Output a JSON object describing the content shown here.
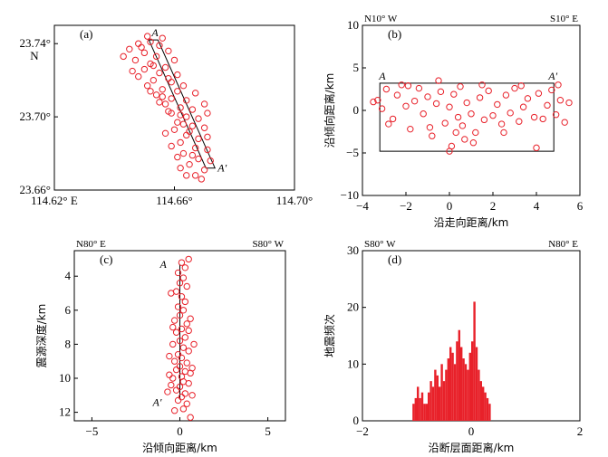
{
  "chart_data": [
    {
      "id": "a",
      "type": "scatter",
      "panel_label": "(a)",
      "xlim": [
        114.62,
        114.7
      ],
      "ylim": [
        23.66,
        23.75
      ],
      "x_ticks": [
        114.62,
        114.66,
        114.7
      ],
      "x_tick_labels": [
        "114.62° E",
        "114.66°",
        "114.70°"
      ],
      "y_ticks": [
        23.66,
        23.7,
        23.74
      ],
      "y_tick_labels": [
        "23.66°",
        "23.70°",
        "23.74°"
      ],
      "y_unit": "N",
      "profile": {
        "start_label": "A",
        "end_label": "A′",
        "start": [
          114.653,
          23.742
        ],
        "end": [
          114.672,
          23.672
        ]
      },
      "points": [
        [
          114.652,
          23.741
        ],
        [
          114.649,
          23.738
        ],
        [
          114.655,
          23.739
        ],
        [
          114.65,
          23.735
        ],
        [
          114.654,
          23.733
        ],
        [
          114.647,
          23.731
        ],
        [
          114.652,
          23.729
        ],
        [
          114.657,
          23.727
        ],
        [
          114.65,
          23.726
        ],
        [
          114.655,
          23.724
        ],
        [
          114.648,
          23.722
        ],
        [
          114.653,
          23.72
        ],
        [
          114.659,
          23.719
        ],
        [
          114.651,
          23.717
        ],
        [
          114.656,
          23.715
        ],
        [
          114.661,
          23.714
        ],
        [
          114.654,
          23.712
        ],
        [
          114.659,
          23.71
        ],
        [
          114.664,
          23.709
        ],
        [
          114.657,
          23.707
        ],
        [
          114.662,
          23.705
        ],
        [
          114.666,
          23.704
        ],
        [
          114.659,
          23.702
        ],
        [
          114.664,
          23.7
        ],
        [
          114.668,
          23.699
        ],
        [
          114.661,
          23.697
        ],
        [
          114.666,
          23.695
        ],
        [
          114.66,
          23.693
        ],
        [
          114.664,
          23.69
        ],
        [
          114.668,
          23.688
        ],
        [
          114.662,
          23.686
        ],
        [
          114.667,
          23.683
        ],
        [
          114.663,
          23.68
        ],
        [
          114.668,
          23.677
        ],
        [
          114.665,
          23.674
        ],
        [
          114.67,
          23.671
        ],
        [
          114.667,
          23.668
        ],
        [
          114.645,
          23.737
        ],
        [
          114.643,
          23.733
        ],
        [
          114.658,
          23.736
        ],
        [
          114.66,
          23.731
        ],
        [
          114.646,
          23.725
        ],
        [
          114.661,
          23.723
        ],
        [
          114.663,
          23.717
        ],
        [
          114.652,
          23.714
        ],
        [
          114.667,
          23.713
        ],
        [
          114.655,
          23.708
        ],
        [
          114.67,
          23.707
        ],
        [
          114.658,
          23.703
        ],
        [
          114.671,
          23.702
        ],
        [
          114.663,
          23.696
        ],
        [
          114.67,
          23.694
        ],
        [
          114.657,
          23.691
        ],
        [
          114.671,
          23.689
        ],
        [
          114.659,
          23.684
        ],
        [
          114.671,
          23.682
        ],
        [
          114.661,
          23.678
        ],
        [
          114.672,
          23.676
        ],
        [
          114.662,
          23.672
        ],
        [
          114.669,
          23.666
        ],
        [
          114.651,
          23.744
        ],
        [
          114.656,
          23.743
        ],
        [
          114.648,
          23.74
        ],
        [
          114.653,
          23.728
        ],
        [
          114.658,
          23.721
        ],
        [
          114.656,
          23.711
        ],
        [
          114.662,
          23.701
        ],
        [
          114.665,
          23.692
        ],
        [
          114.666,
          23.679
        ],
        [
          114.664,
          23.668
        ]
      ]
    },
    {
      "id": "b",
      "type": "scatter",
      "panel_label": "(b)",
      "xlabel": "沿走向距离/km",
      "ylabel": "沿倾向距离/km",
      "xlim": [
        -4,
        6
      ],
      "ylim": [
        -10,
        10
      ],
      "x_ticks": [
        -4,
        -2,
        0,
        2,
        4,
        6
      ],
      "y_ticks": [
        -10,
        -5,
        0,
        5,
        10
      ],
      "left_direction": "N10° W",
      "right_direction": "S10° E",
      "profile": {
        "start_label": "A",
        "end_label": "A′",
        "x": [
          -3.2,
          4.8
        ],
        "y": [
          -4.8,
          3.2
        ]
      },
      "points": [
        [
          -3.3,
          1.2
        ],
        [
          -3.1,
          0.2
        ],
        [
          -2.9,
          2.5
        ],
        [
          -2.6,
          -1.0
        ],
        [
          -2.4,
          1.8
        ],
        [
          -2.2,
          3.0
        ],
        [
          -2.0,
          0.5
        ],
        [
          -1.8,
          -2.2
        ],
        [
          -1.6,
          1.1
        ],
        [
          -1.4,
          2.6
        ],
        [
          -1.2,
          -0.4
        ],
        [
          -1.0,
          1.6
        ],
        [
          -0.8,
          -3.0
        ],
        [
          -0.6,
          0.8
        ],
        [
          -0.4,
          2.2
        ],
        [
          -0.2,
          -1.5
        ],
        [
          0.0,
          -4.8
        ],
        [
          0.0,
          0.4
        ],
        [
          0.1,
          -4.2
        ],
        [
          0.2,
          1.9
        ],
        [
          0.3,
          -2.6
        ],
        [
          0.4,
          -0.8
        ],
        [
          0.5,
          2.8
        ],
        [
          0.6,
          -1.8
        ],
        [
          0.8,
          0.9
        ],
        [
          1.0,
          -0.4
        ],
        [
          1.2,
          -2.6
        ],
        [
          1.4,
          1.5
        ],
        [
          1.6,
          -1.1
        ],
        [
          1.8,
          2.3
        ],
        [
          2.0,
          -0.6
        ],
        [
          2.2,
          0.7
        ],
        [
          2.4,
          -1.6
        ],
        [
          2.6,
          1.8
        ],
        [
          2.8,
          -0.3
        ],
        [
          3.0,
          2.6
        ],
        [
          3.2,
          -1.3
        ],
        [
          3.4,
          0.4
        ],
        [
          3.6,
          1.4
        ],
        [
          3.9,
          -0.8
        ],
        [
          4.1,
          2.0
        ],
        [
          4.3,
          -1.0
        ],
        [
          4.5,
          0.6
        ],
        [
          4.7,
          2.4
        ],
        [
          4.9,
          -0.5
        ],
        [
          5.1,
          1.2
        ],
        [
          5.3,
          -1.4
        ],
        [
          5.5,
          0.9
        ],
        [
          -3.5,
          1.0
        ],
        [
          -2.8,
          -1.6
        ],
        [
          -1.9,
          2.9
        ],
        [
          -0.9,
          -2.0
        ],
        [
          0.7,
          -3.4
        ],
        [
          1.5,
          3.0
        ],
        [
          2.5,
          -2.6
        ],
        [
          3.3,
          2.9
        ],
        [
          4.0,
          -4.4
        ],
        [
          5.0,
          3.0
        ],
        [
          -0.5,
          3.5
        ],
        [
          1.1,
          -3.8
        ]
      ]
    },
    {
      "id": "c",
      "type": "scatter",
      "panel_label": "(c)",
      "xlabel": "沿倾向距离/km",
      "ylabel": "震源深度/km",
      "xlim": [
        -6,
        6
      ],
      "ylim": [
        12.5,
        2.5
      ],
      "x_ticks": [
        -5,
        0,
        5
      ],
      "y_ticks": [
        4,
        6,
        8,
        10,
        12
      ],
      "left_direction": "N80° E",
      "right_direction": "S80° W",
      "profile": {
        "start_label": "A",
        "end_label": "A′",
        "x": [
          0.0,
          0.0
        ],
        "y": [
          3.3,
          11.2
        ]
      },
      "points": [
        [
          0.1,
          3.2
        ],
        [
          0.5,
          3.0
        ],
        [
          0.3,
          3.5
        ],
        [
          -0.1,
          3.8
        ],
        [
          0.2,
          4.1
        ],
        [
          0.0,
          4.4
        ],
        [
          0.4,
          4.6
        ],
        [
          -0.2,
          4.9
        ],
        [
          0.1,
          5.2
        ],
        [
          0.3,
          5.5
        ],
        [
          -0.1,
          5.8
        ],
        [
          0.2,
          6.0
        ],
        [
          0.0,
          6.3
        ],
        [
          -0.3,
          6.6
        ],
        [
          0.4,
          6.8
        ],
        [
          0.1,
          7.1
        ],
        [
          -0.2,
          7.3
        ],
        [
          0.3,
          7.6
        ],
        [
          0.0,
          7.8
        ],
        [
          -0.4,
          8.0
        ],
        [
          0.2,
          8.2
        ],
        [
          0.5,
          8.4
        ],
        [
          -0.1,
          8.6
        ],
        [
          0.1,
          8.8
        ],
        [
          -0.3,
          9.0
        ],
        [
          0.4,
          9.1
        ],
        [
          0.0,
          9.3
        ],
        [
          -0.2,
          9.5
        ],
        [
          0.3,
          9.6
        ],
        [
          0.6,
          9.7
        ],
        [
          0.1,
          9.9
        ],
        [
          -0.4,
          10.0
        ],
        [
          0.2,
          10.2
        ],
        [
          0.5,
          10.3
        ],
        [
          0.0,
          10.5
        ],
        [
          -0.2,
          10.7
        ],
        [
          0.3,
          10.9
        ],
        [
          0.1,
          11.1
        ],
        [
          -0.1,
          11.3
        ],
        [
          0.4,
          11.5
        ],
        [
          0.2,
          11.8
        ],
        [
          -0.3,
          11.9
        ],
        [
          0.6,
          12.3
        ],
        [
          -0.5,
          5.0
        ],
        [
          0.6,
          6.5
        ],
        [
          -0.6,
          8.7
        ],
        [
          0.7,
          9.4
        ],
        [
          -0.5,
          10.4
        ],
        [
          0.7,
          11.0
        ],
        [
          -0.4,
          7.0
        ],
        [
          0.5,
          7.2
        ],
        [
          -0.6,
          9.8
        ],
        [
          0.8,
          8.0
        ],
        [
          -0.7,
          10.8
        ]
      ]
    },
    {
      "id": "d",
      "type": "bar",
      "panel_label": "(d)",
      "xlabel": "沿断层面距离/km",
      "ylabel": "地震频次",
      "xlim": [
        -2,
        2
      ],
      "ylim": [
        0,
        30
      ],
      "x_ticks": [
        -2,
        0,
        2
      ],
      "y_ticks": [
        0,
        10,
        20,
        30
      ],
      "left_direction": "S80° W",
      "right_direction": "N80° E",
      "bar_start": -1.08,
      "bar_width": 0.04,
      "values": [
        3,
        4,
        6,
        4,
        5,
        3,
        3,
        5,
        7,
        6,
        9,
        8,
        6,
        10,
        7,
        9,
        11,
        13,
        12,
        10,
        14,
        16,
        13,
        11,
        10,
        9,
        12,
        14,
        21,
        13,
        9,
        7,
        6,
        5,
        4,
        3
      ]
    }
  ]
}
